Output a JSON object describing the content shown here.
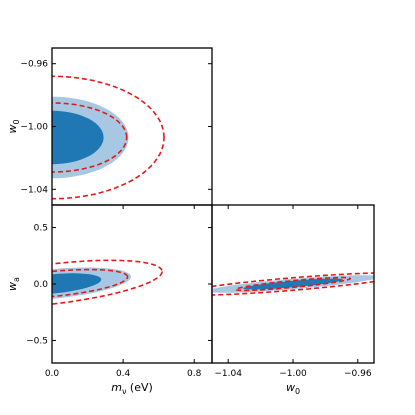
{
  "chart_data": {
    "type": "triangle",
    "colors": {
      "inner": "#1f77b4",
      "outer": "#a6c8e2",
      "contour": "#e31a1c"
    },
    "panels": [
      {
        "name": "w0-vs-mnu",
        "xlabel": "",
        "ylabel_base": "w",
        "ylabel_sub": "0",
        "xlim": [
          0.0,
          0.9
        ],
        "ylim": [
          -1.05,
          -0.95
        ],
        "xticks": [],
        "yticks": [
          -0.96,
          -1.0,
          -1.04
        ],
        "ytick_labels": [
          "−0.96",
          "−1.00",
          "−1.04"
        ],
        "filled": [
          {
            "level": "2sigma",
            "cx": 0.0,
            "cy": -1.007,
            "rx": 0.43,
            "ry": 0.026,
            "angle": 0
          },
          {
            "level": "1sigma",
            "cx": 0.0,
            "cy": -1.007,
            "rx": 0.29,
            "ry": 0.017,
            "angle": 0
          }
        ],
        "dashed": [
          {
            "level": "2sigma",
            "cx": 0.0,
            "cy": -1.007,
            "rx": 0.63,
            "ry": 0.039,
            "angle": 0
          },
          {
            "level": "1sigma",
            "cx": 0.0,
            "cy": -1.007,
            "rx": 0.42,
            "ry": 0.022,
            "angle": 0
          }
        ]
      },
      {
        "name": "wa-vs-mnu",
        "xlabel_base": "m",
        "xlabel_sub": "ν",
        "xlabel_suffix": " (eV)",
        "ylabel_base": "w",
        "ylabel_sub": "a",
        "xlim": [
          0.0,
          0.9
        ],
        "ylim": [
          -0.7,
          0.7
        ],
        "xticks": [
          0.0,
          0.4,
          0.8
        ],
        "xtick_labels": [
          "0.0",
          "0.4",
          "0.8"
        ],
        "yticks": [
          0.5,
          0.0,
          -0.5
        ],
        "ytick_labels": [
          "0.5",
          "0.0",
          "−0.5"
        ],
        "filled": [
          {
            "level": "2sigma",
            "cx": 0.0,
            "cy": 0.0,
            "rx": 0.45,
            "ry": 0.13,
            "angle": 9
          },
          {
            "level": "1sigma",
            "cx": 0.0,
            "cy": 0.0,
            "rx": 0.28,
            "ry": 0.085,
            "angle": 9
          }
        ],
        "dashed": [
          {
            "level": "2sigma",
            "cx": 0.0,
            "cy": 0.0,
            "rx": 0.63,
            "ry": 0.175,
            "angle": 11
          },
          {
            "level": "1sigma",
            "cx": 0.0,
            "cy": 0.0,
            "rx": 0.43,
            "ry": 0.11,
            "angle": 9
          }
        ]
      },
      {
        "name": "wa-vs-w0",
        "xlabel_base": "w",
        "xlabel_sub": "0",
        "xlim": [
          -1.05,
          -0.95
        ],
        "ylim": [
          -0.7,
          0.7
        ],
        "xticks": [
          -1.04,
          -1.0,
          -0.96
        ],
        "xtick_labels": [
          "−1.04",
          "−1.00",
          "−0.96"
        ],
        "yticks": [],
        "filled": [
          {
            "level": "2sigma",
            "cx": -1.0,
            "cy": 0.0,
            "rx": 0.027,
            "ry": 0.09,
            "angle": -32
          },
          {
            "level": "1sigma",
            "cx": -1.0,
            "cy": 0.0,
            "rx": 0.016,
            "ry": 0.055,
            "angle": -30
          }
        ],
        "dashed": [
          {
            "level": "2sigma",
            "cx": -1.0,
            "cy": 0.0,
            "rx": 0.033,
            "ry": 0.115,
            "angle": -33
          },
          {
            "level": "1sigma",
            "cx": -1.0,
            "cy": 0.0,
            "rx": 0.016,
            "ry": 0.065,
            "angle": -30
          }
        ]
      }
    ]
  }
}
